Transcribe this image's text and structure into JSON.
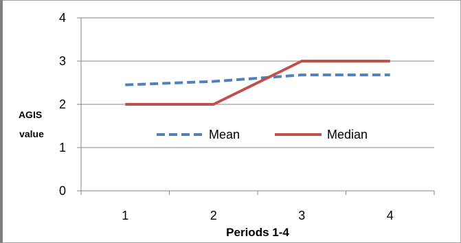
{
  "chart_data": {
    "type": "line",
    "title": "",
    "xlabel": "Periods 1-4",
    "ylabel": [
      "AGIS",
      "value"
    ],
    "categories": [
      "1",
      "2",
      "3",
      "4"
    ],
    "ylim": [
      0,
      4
    ],
    "yticks": [
      "0",
      "1",
      "2",
      "3",
      "4"
    ],
    "grid": true,
    "legend_position": "center",
    "series": [
      {
        "name": "Mean",
        "values": [
          2.45,
          2.53,
          2.68,
          2.68
        ],
        "color": "#4f81bd",
        "style": "dashed"
      },
      {
        "name": "Median",
        "values": [
          2,
          2,
          3,
          3
        ],
        "color": "#c0504d",
        "style": "solid"
      }
    ]
  }
}
